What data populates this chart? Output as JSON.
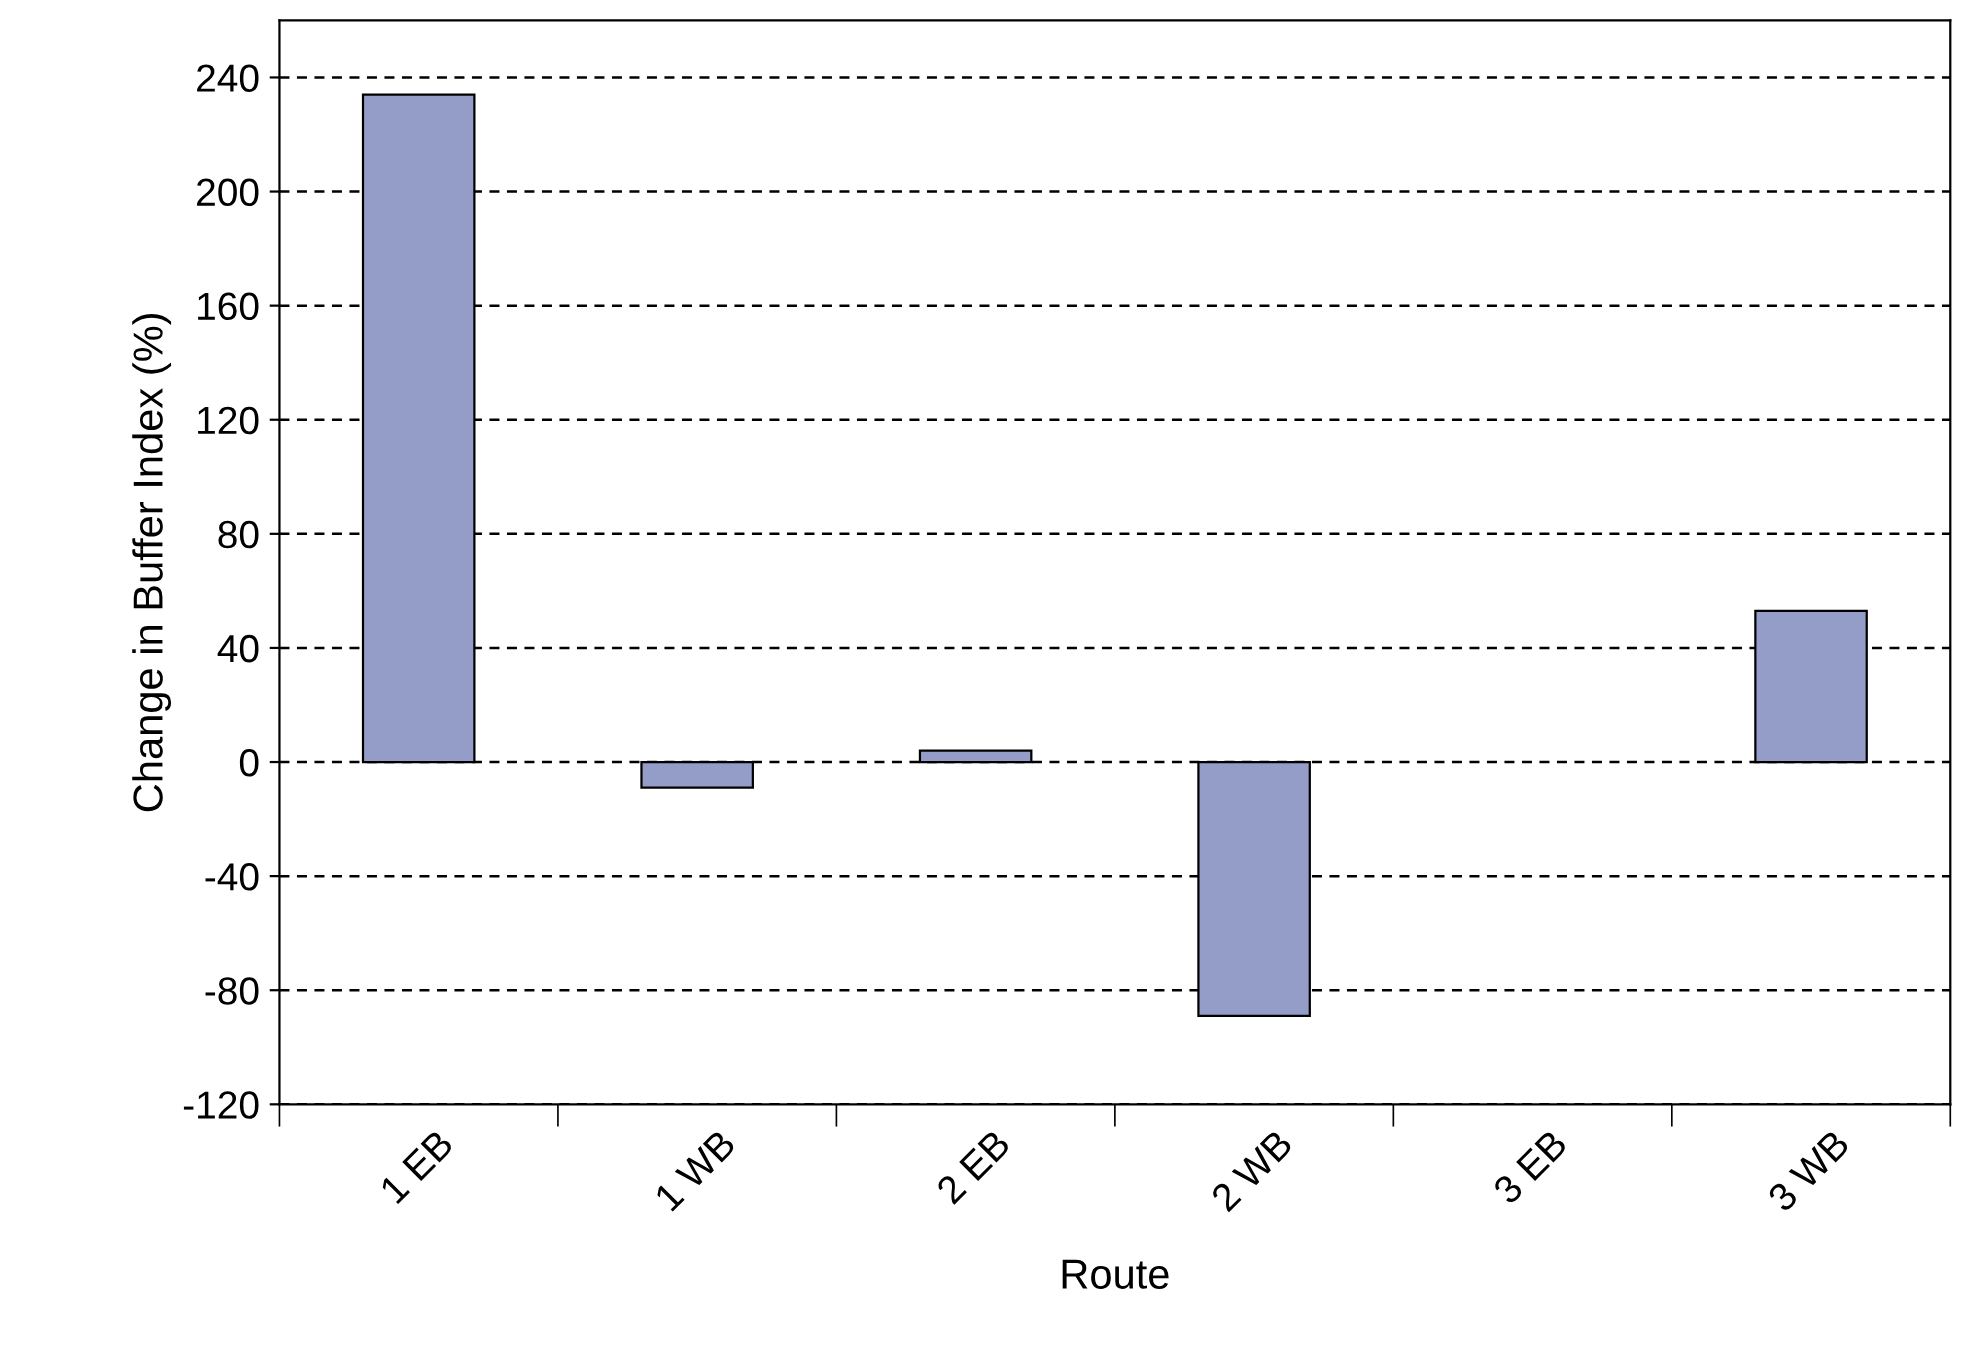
{
  "chart_data": {
    "type": "bar",
    "xlabel": "Route",
    "ylabel": "Change in Buffer Index (%)",
    "categories": [
      "1 EB",
      "1 WB",
      "2 EB",
      "2 WB",
      "3 EB",
      "3 WB"
    ],
    "values": [
      234,
      -9,
      4,
      -89,
      null,
      53
    ],
    "color": "#949cc8",
    "ylim": [
      -120,
      260
    ],
    "yticks": [
      -120,
      -80,
      -40,
      0,
      40,
      80,
      120,
      160,
      200,
      240
    ],
    "grid": "y"
  }
}
